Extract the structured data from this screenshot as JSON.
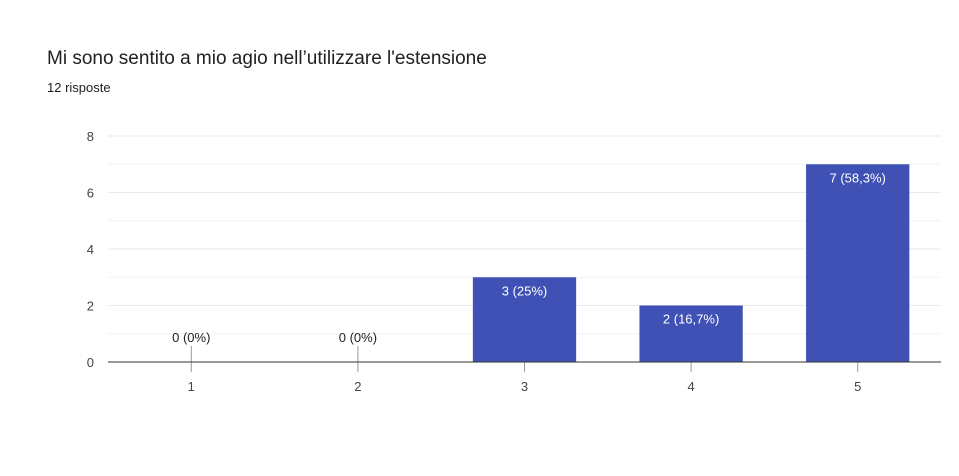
{
  "title": "Mi sono sentito a mio agio nell’utilizzare l'estensione",
  "subtitle": "12 risposte",
  "colors": {
    "bar": "#3f51b5",
    "grid": "#e8eaed",
    "axis": "#333333",
    "text": "#444444"
  },
  "chart_data": {
    "type": "bar",
    "title": "Mi sono sentito a mio agio nell’utilizzare l'estensione",
    "subtitle": "12 risposte",
    "categories": [
      "1",
      "2",
      "3",
      "4",
      "5"
    ],
    "values": [
      0,
      0,
      3,
      2,
      7
    ],
    "data_labels": [
      "0 (0%)",
      "0 (0%)",
      "3 (25%)",
      "2 (16,7%)",
      "7 (58,3%)"
    ],
    "yticks": [
      "0",
      "2",
      "4",
      "6",
      "8"
    ],
    "ylim": [
      0,
      8
    ],
    "xlabel": "",
    "ylabel": "",
    "grid": true,
    "legend": "none"
  }
}
